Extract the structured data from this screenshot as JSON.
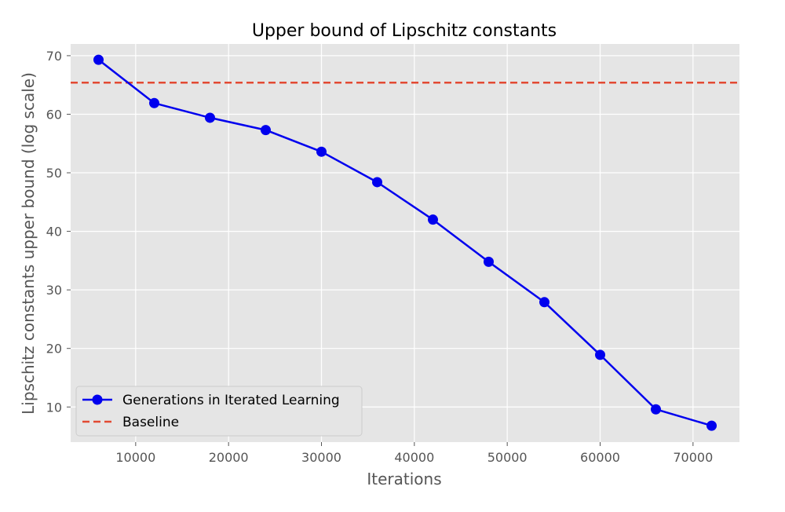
{
  "chart_data": {
    "type": "line",
    "title": "Upper bound of Lipschitz constants",
    "xlabel": "Iterations",
    "ylabel": "Lipschitz constants upper bound (log scale)",
    "xlim": [
      3000,
      75000
    ],
    "ylim": [
      4,
      72
    ],
    "xticks": [
      10000,
      20000,
      30000,
      40000,
      50000,
      60000,
      70000
    ],
    "yticks": [
      10,
      20,
      30,
      40,
      50,
      60,
      70
    ],
    "grid": true,
    "legend_position": "lower-left",
    "series": [
      {
        "name": "Generations in Iterated Learning",
        "color": "#0000ee",
        "marker": "circle",
        "x": [
          6000,
          12000,
          18000,
          24000,
          30000,
          36000,
          42000,
          48000,
          54000,
          60000,
          66000,
          72000
        ],
        "y": [
          69.3,
          61.9,
          59.4,
          57.3,
          53.6,
          48.4,
          42.0,
          34.8,
          27.9,
          18.9,
          9.6,
          6.8
        ]
      },
      {
        "name": "Baseline",
        "color": "#e24a33",
        "style": "dashed",
        "value": 65.4
      }
    ]
  }
}
